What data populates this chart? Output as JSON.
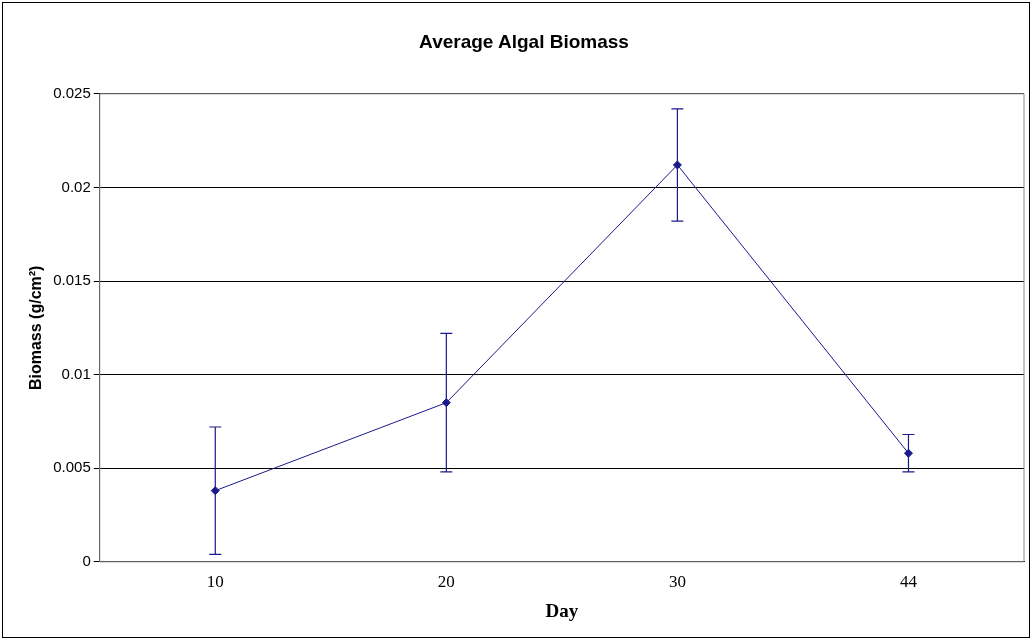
{
  "chart_data": {
    "type": "line",
    "title": "Average Algal Biomass",
    "xlabel": "Day",
    "ylabel": "Biomass (g/cm²)",
    "categories": [
      "10",
      "20",
      "30",
      "44"
    ],
    "series": [
      {
        "color": "#1a1a8c",
        "values": [
          0.0038,
          0.0085,
          0.0212,
          0.0058
        ],
        "errors": [
          0.0034,
          0.0037,
          0.003,
          0.001
        ]
      }
    ],
    "ylim": [
      0,
      0.025
    ],
    "yticks": [
      0,
      0.005,
      0.01,
      0.015,
      0.02,
      0.025
    ],
    "grid": "y",
    "legend": false,
    "marker": "diamond",
    "line_style": "solid"
  }
}
